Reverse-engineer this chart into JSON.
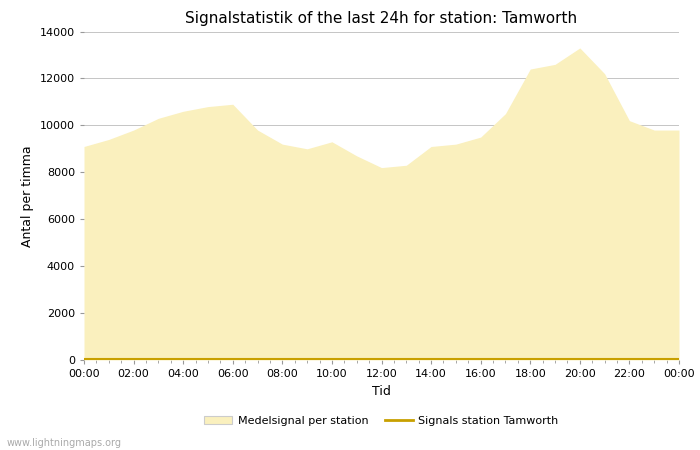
{
  "title": "Signalstatistik of the last 24h for station: Tamworth",
  "xlabel": "Tid",
  "ylabel": "Antal per timma",
  "ylim": [
    0,
    14000
  ],
  "yticks": [
    0,
    2000,
    4000,
    6000,
    8000,
    10000,
    12000,
    14000
  ],
  "xtick_labels": [
    "00:00",
    "02:00",
    "04:00",
    "06:00",
    "08:00",
    "10:00",
    "12:00",
    "14:00",
    "16:00",
    "18:00",
    "20:00",
    "22:00",
    "00:00"
  ],
  "fill_color": "#FAF0BE",
  "line_color": "#C8A000",
  "background_color": "#ffffff",
  "grid_color": "#bbbbbb",
  "watermark": "www.lightningmaps.org",
  "legend_label1": "Medelsignal per station",
  "legend_label2": "Signals station Tamworth",
  "x_hours": [
    0,
    1,
    2,
    3,
    4,
    5,
    6,
    7,
    8,
    9,
    10,
    11,
    12,
    13,
    14,
    15,
    16,
    17,
    18,
    19,
    20,
    21,
    22,
    23,
    24
  ],
  "y_area": [
    9100,
    9400,
    9800,
    10300,
    10600,
    10800,
    10900,
    9800,
    9200,
    9000,
    9300,
    8700,
    8200,
    8300,
    9100,
    9200,
    9500,
    10500,
    12400,
    12600,
    13300,
    12200,
    10200,
    9800,
    9800
  ],
  "y_line": [
    50,
    50,
    50,
    50,
    50,
    50,
    50,
    50,
    50,
    50,
    50,
    50,
    50,
    50,
    50,
    50,
    50,
    50,
    50,
    50,
    50,
    50,
    50,
    50,
    50
  ],
  "title_fontsize": 11,
  "axis_label_fontsize": 9,
  "tick_fontsize": 8,
  "legend_fontsize": 8,
  "watermark_fontsize": 7
}
